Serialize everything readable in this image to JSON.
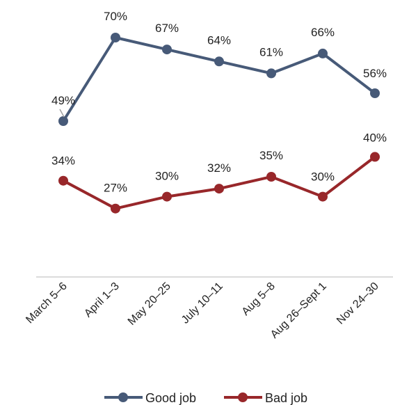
{
  "chart_data": {
    "type": "line",
    "categories": [
      "March 5–6",
      "April 1–3",
      "May 20–25",
      "July 10–11",
      "Aug 5–8",
      "Aug 26–Sept 1",
      "Nov 24–30"
    ],
    "series": [
      {
        "name": "Good job",
        "color": "#475a78",
        "values": [
          49,
          70,
          67,
          64,
          61,
          66,
          56
        ],
        "labels": [
          "49%",
          "70%",
          "67%",
          "64%",
          "61%",
          "66%",
          "56%"
        ]
      },
      {
        "name": "Bad job",
        "color": "#98272a",
        "values": [
          34,
          27,
          30,
          32,
          35,
          30,
          40
        ],
        "labels": [
          "34%",
          "27%",
          "30%",
          "32%",
          "35%",
          "30%",
          "40%"
        ]
      }
    ],
    "ylim": [
      10,
      75
    ],
    "grid": false,
    "legend": "bottom"
  }
}
